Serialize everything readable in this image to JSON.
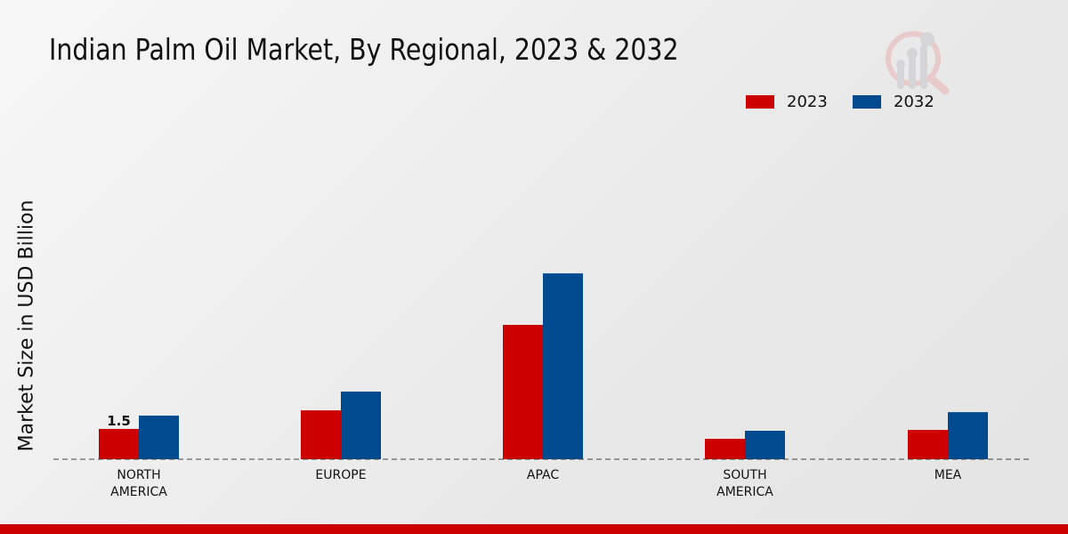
{
  "chart_data": {
    "type": "bar",
    "title": "Indian Palm Oil Market, By Regional, 2023 & 2032",
    "xlabel": "",
    "ylabel": "Market Size in USD Billion",
    "ylim": [
      0,
      10
    ],
    "grid": false,
    "legend_position": "top-right",
    "categories": [
      [
        "NORTH",
        "AMERICA"
      ],
      [
        "EUROPE"
      ],
      [
        "APAC"
      ],
      [
        "SOUTH",
        "AMERICA"
      ],
      [
        "MEA"
      ]
    ],
    "series": [
      {
        "name": "2023",
        "color": "#cc0000",
        "values": [
          1.5,
          2.42,
          6.65,
          1.01,
          1.45
        ]
      },
      {
        "name": "2032",
        "color": "#004a8f",
        "values": [
          2.16,
          3.35,
          9.2,
          1.41,
          2.33
        ]
      }
    ],
    "annotations": [
      {
        "category": 0,
        "series": 0,
        "text": "1.5"
      }
    ]
  }
}
